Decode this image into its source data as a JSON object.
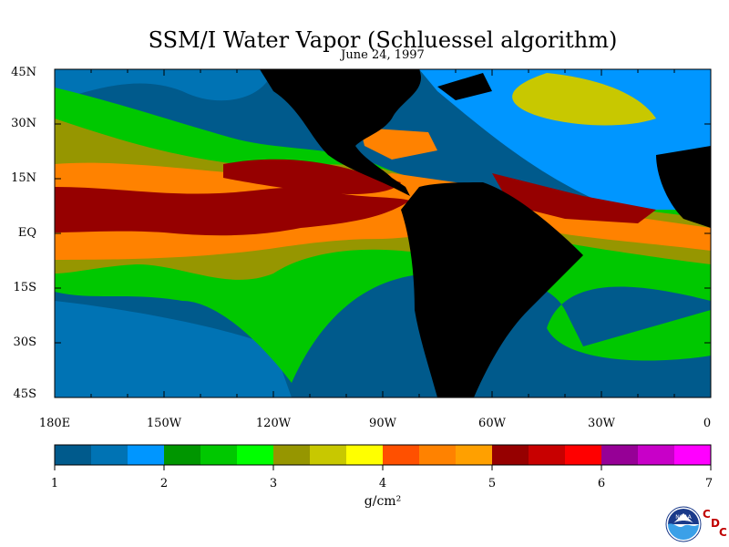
{
  "title": "SSM/I Water Vapor (Schluessel algorithm)",
  "date": "June 24, 1997",
  "map": {
    "lon_range": [
      "180E",
      "0"
    ],
    "lat_range": [
      "45S",
      "45N"
    ],
    "lat_ticks": [
      "45N",
      "30N",
      "15N",
      "EQ",
      "15S",
      "30S",
      "45S"
    ],
    "lon_ticks": [
      "180E",
      "150W",
      "120W",
      "90W",
      "60W",
      "30W",
      "0"
    ],
    "land_color": "#000000",
    "variable": "water vapor"
  },
  "colorbar": {
    "colors": [
      "#005a8c",
      "#0073b4",
      "#0096ff",
      "#009600",
      "#00c800",
      "#00ff00",
      "#969600",
      "#c8c800",
      "#ffff00",
      "#ff5000",
      "#ff8200",
      "#ffa000",
      "#960000",
      "#c80000",
      "#ff0000",
      "#960096",
      "#c800c8",
      "#ff00ff"
    ],
    "labels": [
      "1",
      "2",
      "3",
      "4",
      "5",
      "6",
      "7"
    ],
    "units": "g/cm²"
  },
  "logo": {
    "icon": "noaa-logo",
    "text": "NOAA",
    "letters": [
      "C",
      "D",
      "C"
    ]
  }
}
